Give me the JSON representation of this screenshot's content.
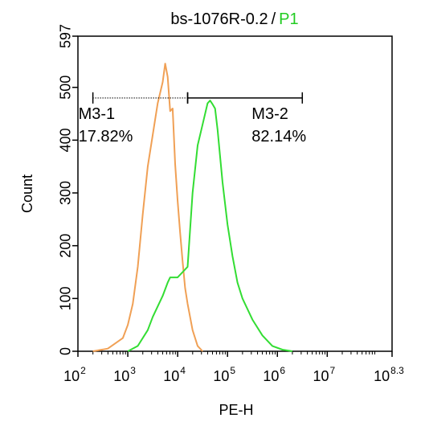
{
  "title": {
    "sample": "bs-1076R-0.2",
    "separator": "/",
    "gate": "P1"
  },
  "colors": {
    "orange_series": "#f0a055",
    "green_series": "#33dd33",
    "gate_name_color": "#22cc22",
    "axis": "#000000"
  },
  "chart_data": {
    "type": "line",
    "title": "bs-1076R-0.2 / P1",
    "xlabel": "PE-H",
    "ylabel": "Count",
    "x_scale": "log",
    "xlim": [
      2,
      8.3
    ],
    "ylim": [
      0,
      597
    ],
    "x_ticks": [
      {
        "base": "10",
        "exp": "2",
        "value": 2
      },
      {
        "base": "10",
        "exp": "3",
        "value": 3
      },
      {
        "base": "10",
        "exp": "4",
        "value": 4
      },
      {
        "base": "10",
        "exp": "5",
        "value": 5
      },
      {
        "base": "10",
        "exp": "6",
        "value": 6
      },
      {
        "base": "10",
        "exp": "7",
        "value": 7
      },
      {
        "base": "10",
        "exp": "8.3",
        "value": 8.3
      }
    ],
    "y_ticks": [
      "0",
      "100",
      "200",
      "300",
      "400",
      "500",
      "597"
    ],
    "y_tick_values": [
      0,
      100,
      200,
      300,
      400,
      500,
      597
    ],
    "series": [
      {
        "color": "#f0a055",
        "x": [
          2.3,
          2.6,
          2.9,
          3.0,
          3.1,
          3.2,
          3.3,
          3.4,
          3.5,
          3.6,
          3.7,
          3.75,
          3.8,
          3.85,
          3.9,
          3.95,
          4.0,
          4.05,
          4.1,
          4.15,
          4.2,
          4.3,
          4.4,
          4.5
        ],
        "y": [
          0,
          5,
          25,
          50,
          90,
          160,
          260,
          350,
          410,
          470,
          510,
          545,
          520,
          455,
          460,
          355,
          285,
          225,
          170,
          120,
          90,
          40,
          10,
          0
        ]
      },
      {
        "color": "#33dd33",
        "x": [
          3.0,
          3.2,
          3.4,
          3.5,
          3.6,
          3.7,
          3.8,
          3.85,
          4.0,
          4.1,
          4.2,
          4.3,
          4.4,
          4.5,
          4.6,
          4.65,
          4.7,
          4.75,
          4.8,
          4.85,
          4.9,
          5.0,
          5.1,
          5.2,
          5.3,
          5.5,
          5.7,
          5.9,
          6.1,
          6.3
        ],
        "y": [
          0,
          10,
          40,
          65,
          85,
          105,
          130,
          140,
          140,
          150,
          160,
          300,
          390,
          430,
          470,
          475,
          468,
          460,
          420,
          370,
          320,
          240,
          180,
          130,
          100,
          60,
          30,
          10,
          3,
          0
        ]
      }
    ],
    "markers": [
      {
        "name": "M3-1",
        "percent": "17.82%",
        "range": [
          2.3,
          4.2
        ]
      },
      {
        "name": "M3-2",
        "percent": "82.14%",
        "range": [
          4.2,
          6.5
        ]
      }
    ],
    "marker_y": 480,
    "grid": false
  }
}
